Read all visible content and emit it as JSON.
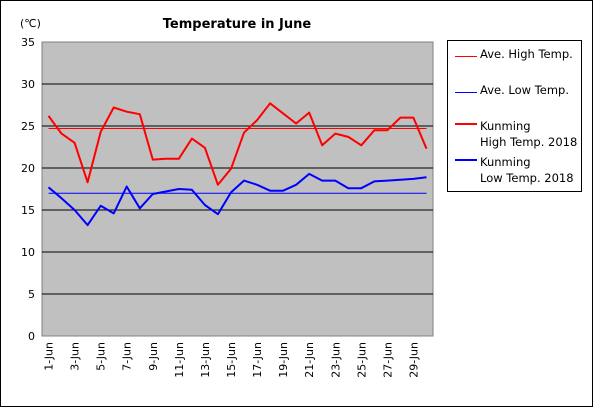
{
  "chart_data": {
    "type": "line",
    "title": "Temperature in June",
    "unit_label": "(℃)",
    "xlabel": "",
    "ylabel": "",
    "ylim": [
      0,
      35
    ],
    "yticks": [
      0,
      5,
      10,
      15,
      20,
      25,
      30,
      35
    ],
    "categories": [
      "1-Jun",
      "2-Jun",
      "3-Jun",
      "4-Jun",
      "5-Jun",
      "6-Jun",
      "7-Jun",
      "8-Jun",
      "9-Jun",
      "10-Jun",
      "11-Jun",
      "12-Jun",
      "13-Jun",
      "14-Jun",
      "15-Jun",
      "16-Jun",
      "17-Jun",
      "18-Jun",
      "19-Jun",
      "20-Jun",
      "21-Jun",
      "22-Jun",
      "23-Jun",
      "24-Jun",
      "25-Jun",
      "26-Jun",
      "27-Jun",
      "28-Jun",
      "29-Jun",
      "30-Jun"
    ],
    "x_tick_labels": [
      "1-Jun",
      "3-Jun",
      "5-Jun",
      "7-Jun",
      "9-Jun",
      "11-Jun",
      "13-Jun",
      "15-Jun",
      "17-Jun",
      "19-Jun",
      "21-Jun",
      "23-Jun",
      "25-Jun",
      "27-Jun",
      "29-Jun"
    ],
    "grid": true,
    "legend_position": "right",
    "series": [
      {
        "name": "Ave. High Temp.",
        "color": "#ff0000",
        "width": 1,
        "values": [
          24.7,
          24.7,
          24.7,
          24.7,
          24.7,
          24.7,
          24.7,
          24.7,
          24.7,
          24.7,
          24.7,
          24.7,
          24.7,
          24.7,
          24.7,
          24.7,
          24.7,
          24.7,
          24.7,
          24.7,
          24.7,
          24.7,
          24.7,
          24.7,
          24.7,
          24.7,
          24.7,
          24.7,
          24.7,
          24.7
        ]
      },
      {
        "name": "Ave. Low Temp.",
        "color": "#0000ff",
        "width": 1,
        "values": [
          17.0,
          17.0,
          17.0,
          17.0,
          17.0,
          17.0,
          17.0,
          17.0,
          17.0,
          17.0,
          17.0,
          17.0,
          17.0,
          17.0,
          17.0,
          17.0,
          17.0,
          17.0,
          17.0,
          17.0,
          17.0,
          17.0,
          17.0,
          17.0,
          17.0,
          17.0,
          17.0,
          17.0,
          17.0,
          17.0
        ]
      },
      {
        "name": "Kunming High Temp. 2018",
        "legend_lines": [
          "Kunming",
          "High Temp. 2018"
        ],
        "color": "#ff0000",
        "width": 2,
        "values": [
          26.2,
          24.1,
          23.0,
          18.3,
          24.3,
          27.2,
          26.7,
          26.4,
          21.0,
          21.1,
          21.1,
          23.5,
          22.4,
          18.0,
          19.9,
          24.2,
          25.7,
          27.7,
          26.5,
          25.3,
          26.6,
          22.7,
          24.1,
          23.7,
          22.7,
          24.5,
          24.5,
          26.0,
          26.0,
          22.3
        ]
      },
      {
        "name": "Kunming Low Temp. 2018",
        "legend_lines": [
          "Kunming",
          "Low Temp. 2018"
        ],
        "color": "#0000ff",
        "width": 2,
        "values": [
          17.7,
          16.4,
          15.0,
          13.2,
          15.5,
          14.6,
          17.8,
          15.2,
          16.9,
          17.2,
          17.5,
          17.4,
          15.6,
          14.5,
          17.1,
          18.5,
          18.0,
          17.3,
          17.3,
          18.0,
          19.3,
          18.5,
          18.5,
          17.6,
          17.6,
          18.4,
          18.5,
          18.6,
          18.7,
          18.9
        ]
      }
    ]
  }
}
